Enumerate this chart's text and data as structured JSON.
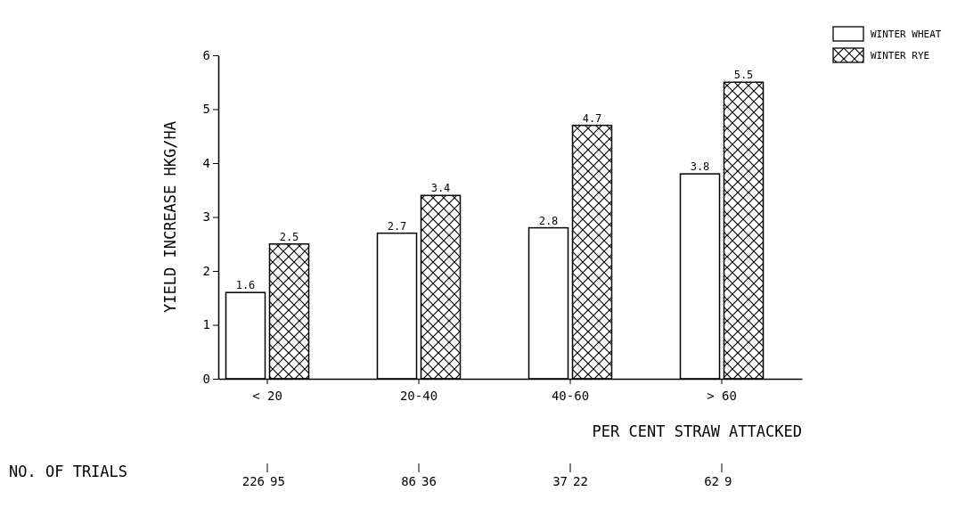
{
  "chart_data": {
    "type": "bar",
    "xlabel": "PER CENT STRAW ATTACKED",
    "ylabel": "YIELD INCREASE HKG/HA",
    "categories": [
      "< 20",
      "20-40",
      "40-60",
      "> 60"
    ],
    "series": [
      {
        "name": "WINTER WHEAT",
        "color": "#ffffff",
        "values": [
          1.6,
          2.7,
          2.8,
          3.8
        ]
      },
      {
        "name": "WINTER RYE",
        "color": "#000000",
        "values": [
          2.5,
          3.4,
          4.7,
          5.5
        ]
      }
    ],
    "ylim": [
      0,
      6
    ],
    "yticks": [
      0,
      1,
      2,
      3,
      4,
      5,
      6
    ],
    "grid": false,
    "legend": "top right",
    "data_labels": true,
    "annotations": [
      "NO. OF TRIALS",
      "226",
      "95",
      "86",
      "36",
      "37",
      "22",
      "62",
      "9"
    ]
  }
}
